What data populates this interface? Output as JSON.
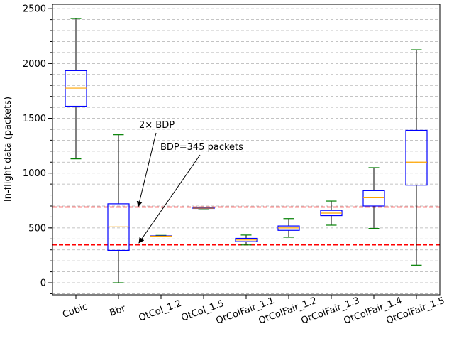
{
  "chart_data": {
    "type": "box",
    "title": "",
    "xlabel": "",
    "ylabel": "In-flight data (packets)",
    "ylim": [
      -110,
      2540
    ],
    "yticks": [
      0,
      500,
      1000,
      1500,
      2000,
      2500
    ],
    "ytick_labels": [
      "0",
      "500",
      "1000",
      "1500",
      "2000",
      "2500"
    ],
    "grid": "horizontal dashed at minor ticks (every 100)",
    "categories": [
      "Cubic",
      "Bbr",
      "QtCol_1.2",
      "QtCol_1.5",
      "QtColFair_1.1",
      "QtColFair_1.2",
      "QtColFair_1.3",
      "QtColFair_1.4",
      "QtColFair_1.5"
    ],
    "boxes": [
      {
        "whisker_low": 1130,
        "q1": 1610,
        "median": 1775,
        "q3": 1935,
        "whisker_high": 2410
      },
      {
        "whisker_low": 0,
        "q1": 295,
        "median": 510,
        "q3": 720,
        "whisker_high": 1350
      },
      {
        "whisker_low": 420,
        "q1": 423,
        "median": 425,
        "q3": 428,
        "whisker_high": 432
      },
      {
        "whisker_low": 675,
        "q1": 678,
        "median": 680,
        "q3": 684,
        "whisker_high": 688
      },
      {
        "whisker_low": 345,
        "q1": 375,
        "median": 390,
        "q3": 405,
        "whisker_high": 435
      },
      {
        "whisker_low": 415,
        "q1": 478,
        "median": 500,
        "q3": 518,
        "whisker_high": 585
      },
      {
        "whisker_low": 525,
        "q1": 612,
        "median": 635,
        "q3": 660,
        "whisker_high": 745
      },
      {
        "whisker_low": 495,
        "q1": 700,
        "median": 775,
        "q3": 840,
        "whisker_high": 1050
      },
      {
        "whisker_low": 160,
        "q1": 890,
        "median": 1100,
        "q3": 1390,
        "whisker_high": 2125
      }
    ],
    "reference_lines": [
      {
        "y": 690,
        "color": "#ff0000",
        "style": "dashed"
      },
      {
        "y": 345,
        "color": "#ff0000",
        "style": "dashed"
      }
    ],
    "annotations": [
      {
        "text": "2× BDP",
        "points_to_y": 690
      },
      {
        "text": "BDP=345 packets",
        "points_to_y": 345
      }
    ],
    "colors": {
      "box_edge": "#0000ff",
      "median": "#ffa500",
      "whisker": "#000000",
      "cap": "#008000",
      "reference": "#ff0000",
      "grid": "#b0b0b0"
    }
  }
}
